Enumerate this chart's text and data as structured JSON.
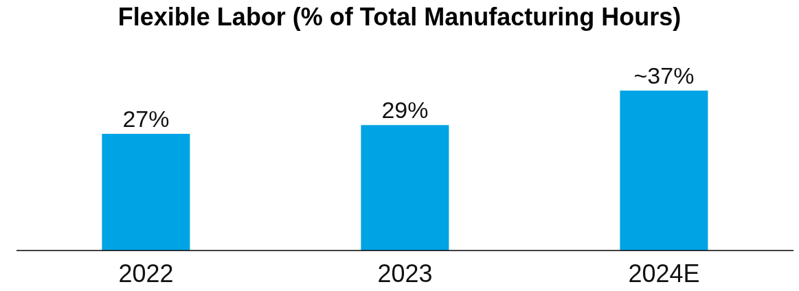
{
  "chart_data": {
    "type": "bar",
    "title": "Flexible Labor (% of Total Manufacturing Hours)",
    "categories": [
      "2022",
      "2023",
      "2024E"
    ],
    "values": [
      27,
      29,
      37
    ],
    "value_labels": [
      "27%",
      "29%",
      "~37%"
    ],
    "color": "#00a3e3"
  }
}
